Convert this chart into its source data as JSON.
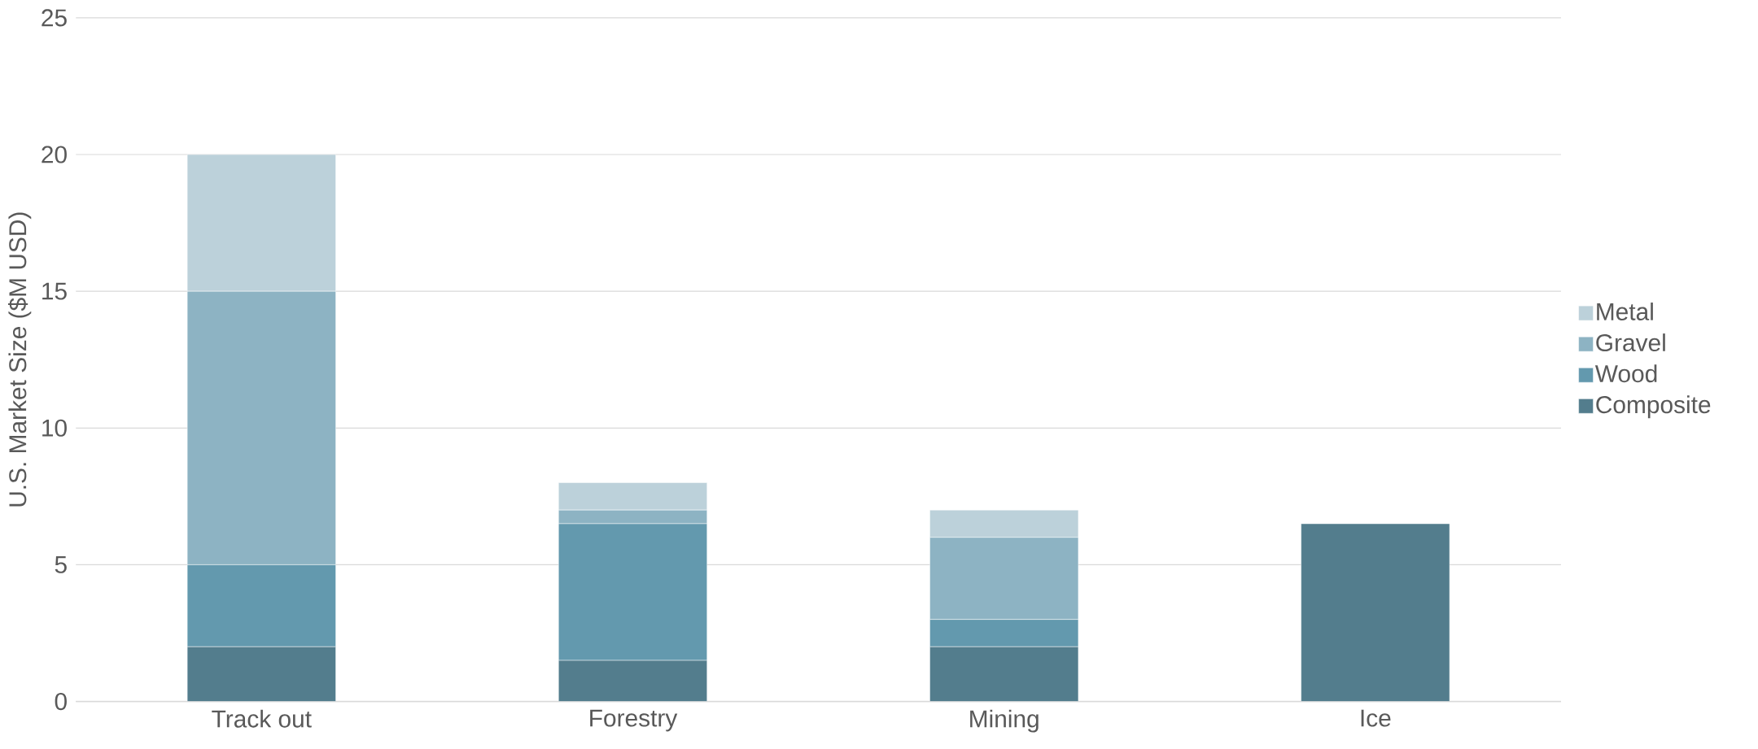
{
  "chart_data": {
    "type": "bar",
    "stacked": true,
    "ylabel": "U.S. Market Size ($M USD)",
    "categories": [
      "Track out",
      "Forestry",
      "Mining",
      "Ice"
    ],
    "series": [
      {
        "name": "Composite",
        "color": "#537d8d",
        "values": [
          2,
          1.5,
          2,
          6.5
        ]
      },
      {
        "name": "Wood",
        "color": "#6399ae",
        "values": [
          3,
          5,
          1,
          null
        ]
      },
      {
        "name": "Gravel",
        "color": "#8db3c3",
        "values": [
          10,
          0.5,
          3,
          null
        ]
      },
      {
        "name": "Metal",
        "color": "#bcd1da",
        "values": [
          5,
          1,
          1,
          null
        ]
      }
    ],
    "ylim": [
      0,
      25
    ],
    "yticks": [
      0,
      5,
      10,
      15,
      20,
      25
    ],
    "grid": "y",
    "legend": "right"
  }
}
